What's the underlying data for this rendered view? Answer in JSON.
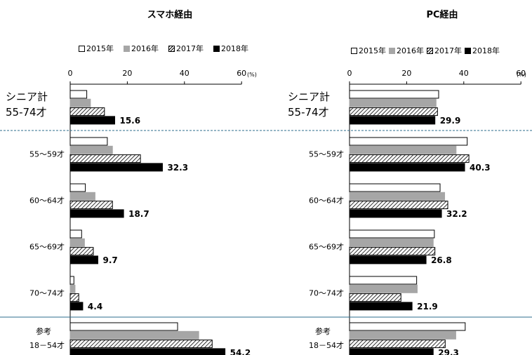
{
  "chart_data": [
    {
      "type": "bar",
      "orientation": "horizontal",
      "title": "スマホ経由",
      "unit": "(%)",
      "xlim": [
        0,
        60
      ],
      "ticks": [
        "0",
        "20",
        "40",
        "60"
      ],
      "categories": [
        [
          "シニア計",
          "55-74才"
        ],
        [
          "55～59才"
        ],
        [
          "60～64才"
        ],
        [
          "65～69才"
        ],
        [
          "70～74才"
        ],
        [
          "参考",
          "18－54才"
        ]
      ],
      "series": [
        {
          "name": "2015年",
          "values": [
            5.8,
            13.0,
            5.3,
            4.0,
            1.3,
            37.6
          ]
        },
        {
          "name": "2016年",
          "values": [
            7.1,
            14.8,
            8.7,
            5.0,
            1.7,
            45.0
          ]
        },
        {
          "name": "2017年",
          "values": [
            12.0,
            24.6,
            14.8,
            8.1,
            3.0,
            49.7
          ]
        },
        {
          "name": "2018年",
          "values": [
            15.6,
            32.3,
            18.7,
            9.7,
            4.4,
            54.2
          ]
        }
      ],
      "data_labels": [
        "15.6",
        "32.3",
        "18.7",
        "9.7",
        "4.4",
        "54.2"
      ]
    },
    {
      "type": "bar",
      "orientation": "horizontal",
      "title": "PC経由",
      "unit": "(%)",
      "xlim": [
        0,
        60
      ],
      "ticks": [
        "0",
        "20",
        "40",
        "60"
      ],
      "categories": [
        [
          "シニア計",
          "55-74才"
        ],
        [
          "55～59才"
        ],
        [
          "60～64才"
        ],
        [
          "65～69才"
        ],
        [
          "70～74才"
        ],
        [
          "参考",
          "18－54才"
        ]
      ],
      "series": [
        {
          "name": "2015年",
          "values": [
            31.2,
            41.2,
            31.7,
            29.7,
            23.5,
            40.5
          ]
        },
        {
          "name": "2016年",
          "values": [
            30.3,
            37.3,
            33.3,
            29.3,
            23.7,
            37.2
          ]
        },
        {
          "name": "2017年",
          "values": [
            30.8,
            41.8,
            34.4,
            29.9,
            18.0,
            33.5
          ]
        },
        {
          "name": "2018年",
          "values": [
            29.9,
            40.3,
            32.2,
            26.8,
            21.9,
            29.3
          ]
        }
      ],
      "data_labels": [
        "29.9",
        "40.3",
        "32.2",
        "26.8",
        "21.9",
        "29.3"
      ]
    }
  ],
  "legend_left": [
    "2015年",
    "2016年",
    "2017年",
    "2018年"
  ],
  "legend_right": [
    "2015年",
    "2016年",
    "2017年",
    "2018年"
  ],
  "colors": {
    "bar_2015": "#ffffff",
    "bar_2016": "#a6a6a6",
    "bar_2017": "hatched",
    "bar_2018": "#000000",
    "separator_dashed": "#2e6e8e",
    "separator_solid": "#2e6e8e"
  }
}
